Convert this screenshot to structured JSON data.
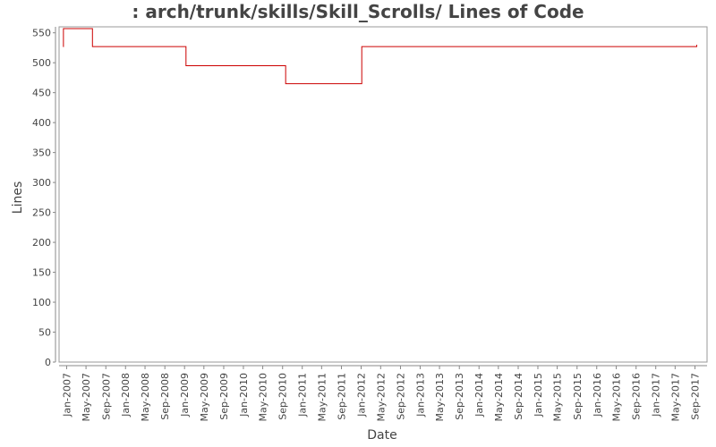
{
  "chart_data": {
    "type": "line",
    "title": ": arch/trunk/skills/Skill_Scrolls/ Lines of Code",
    "xlabel": "Date",
    "ylabel": "Lines",
    "ylim": [
      0,
      560
    ],
    "yticks": [
      0,
      50,
      100,
      150,
      200,
      250,
      300,
      350,
      400,
      450,
      500,
      550
    ],
    "xlim": [
      "2006-11-15",
      "2017-11-15"
    ],
    "xticks": [
      {
        "date": "2007-01-01",
        "label": "Jan-2007"
      },
      {
        "date": "2007-05-01",
        "label": "May-2007"
      },
      {
        "date": "2007-09-01",
        "label": "Sep-2007"
      },
      {
        "date": "2008-01-01",
        "label": "Jan-2008"
      },
      {
        "date": "2008-05-01",
        "label": "May-2008"
      },
      {
        "date": "2008-09-01",
        "label": "Sep-2008"
      },
      {
        "date": "2009-01-01",
        "label": "Jan-2009"
      },
      {
        "date": "2009-05-01",
        "label": "May-2009"
      },
      {
        "date": "2009-09-01",
        "label": "Sep-2009"
      },
      {
        "date": "2010-01-01",
        "label": "Jan-2010"
      },
      {
        "date": "2010-05-01",
        "label": "May-2010"
      },
      {
        "date": "2010-09-01",
        "label": "Sep-2010"
      },
      {
        "date": "2011-01-01",
        "label": "Jan-2011"
      },
      {
        "date": "2011-05-01",
        "label": "May-2011"
      },
      {
        "date": "2011-09-01",
        "label": "Sep-2011"
      },
      {
        "date": "2012-01-01",
        "label": "Jan-2012"
      },
      {
        "date": "2012-05-01",
        "label": "May-2012"
      },
      {
        "date": "2012-09-01",
        "label": "Sep-2012"
      },
      {
        "date": "2013-01-01",
        "label": "Jan-2013"
      },
      {
        "date": "2013-05-01",
        "label": "May-2013"
      },
      {
        "date": "2013-09-01",
        "label": "Sep-2013"
      },
      {
        "date": "2014-01-01",
        "label": "Jan-2014"
      },
      {
        "date": "2014-05-01",
        "label": "May-2014"
      },
      {
        "date": "2014-09-01",
        "label": "Sep-2014"
      },
      {
        "date": "2015-01-01",
        "label": "Jan-2015"
      },
      {
        "date": "2015-05-01",
        "label": "May-2015"
      },
      {
        "date": "2015-09-01",
        "label": "Sep-2015"
      },
      {
        "date": "2016-01-01",
        "label": "Jan-2016"
      },
      {
        "date": "2016-05-01",
        "label": "May-2016"
      },
      {
        "date": "2016-09-01",
        "label": "Sep-2016"
      },
      {
        "date": "2017-01-01",
        "label": "Jan-2017"
      },
      {
        "date": "2017-05-01",
        "label": "May-2017"
      },
      {
        "date": "2017-09-01",
        "label": "Sep-2017"
      }
    ],
    "grid": false,
    "series": [
      {
        "step": true,
        "color": "#cc0000",
        "points": [
          {
            "x": "2006-12-10",
            "y": 527
          },
          {
            "x": "2006-12-12",
            "y": 557
          },
          {
            "x": "2007-06-10",
            "y": 527
          },
          {
            "x": "2009-01-10",
            "y": 495
          },
          {
            "x": "2010-09-20",
            "y": 465
          },
          {
            "x": "2012-01-05",
            "y": 527
          },
          {
            "x": "2017-09-10",
            "y": 527
          },
          {
            "x": "2017-09-12",
            "y": 530
          }
        ]
      }
    ]
  }
}
